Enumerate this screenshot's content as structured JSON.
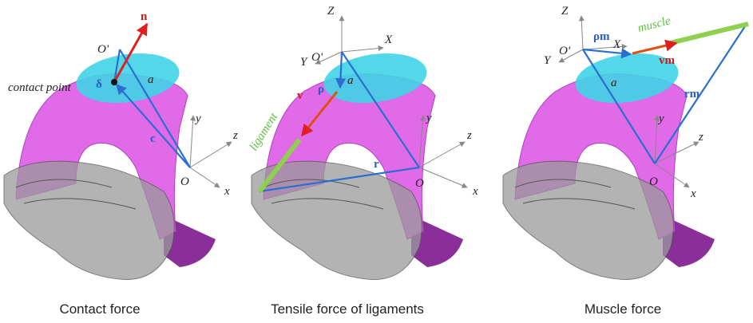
{
  "panels": [
    {
      "caption": "Contact force",
      "labels": [
        "n",
        "O'",
        "contact point",
        "δ",
        "a",
        "c",
        "y",
        "z",
        "O",
        "x"
      ]
    },
    {
      "caption": "Tensile force of ligaments",
      "labels": [
        "Z",
        "O'",
        "X",
        "Y",
        "ligament",
        "v",
        "ρ",
        "a",
        "y",
        "z",
        "r",
        "O",
        "x"
      ]
    },
    {
      "caption": "Muscle force",
      "labels": [
        "Z",
        "O'",
        "ρm",
        "X",
        "muscle",
        "Y",
        "vm",
        "a",
        "rm",
        "y",
        "z",
        "O",
        "x"
      ]
    }
  ]
}
